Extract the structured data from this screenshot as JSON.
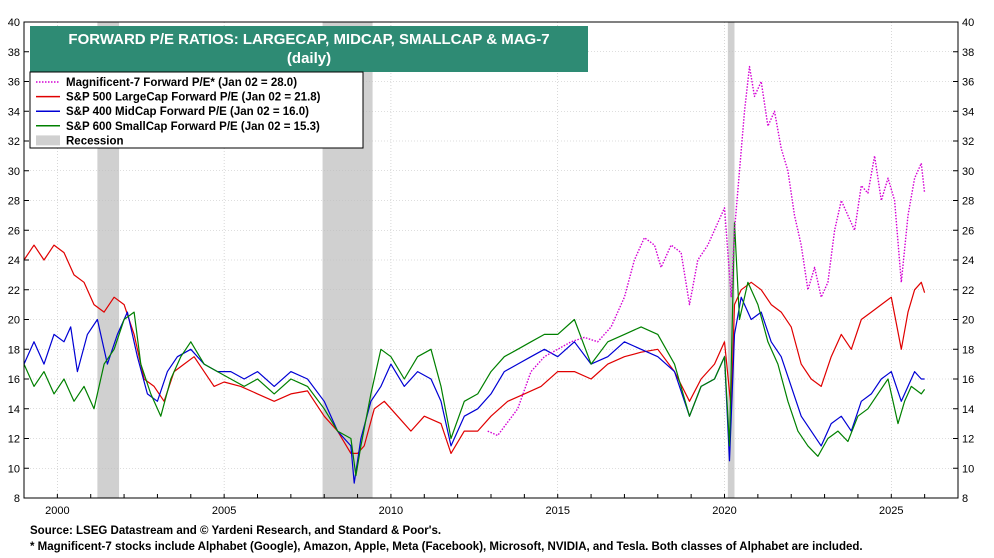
{
  "chart_data": {
    "type": "line",
    "title": "FORWARD P/E RATIOS: LARGECAP, MIDCAP, SMALLCAP & MAG-7",
    "subtitle": "(daily)",
    "xlim": [
      1999,
      2027
    ],
    "ylim": [
      8,
      40
    ],
    "x_ticks": [
      2000,
      2005,
      2010,
      2015,
      2020,
      2025
    ],
    "y_ticks": [
      8,
      10,
      12,
      14,
      16,
      18,
      20,
      22,
      24,
      26,
      28,
      30,
      32,
      34,
      36,
      38,
      40
    ],
    "grid": true,
    "legend_position": "top-left",
    "recessions": [
      [
        2001.2,
        2001.85
      ],
      [
        2007.95,
        2009.45
      ],
      [
        2020.1,
        2020.3
      ]
    ],
    "recession_label": "Recession",
    "recession_color": "#d0d0d0",
    "series": [
      {
        "name": "Magnificent-7 Forward P/E* (Jan 02 = 28.0)",
        "color": "#d400d4",
        "dashed": true,
        "x": [
          2012.9,
          2013.2,
          2013.4,
          2013.8,
          2014.2,
          2014.6,
          2015.0,
          2015.4,
          2015.8,
          2016.2,
          2016.6,
          2017.0,
          2017.3,
          2017.6,
          2017.9,
          2018.1,
          2018.4,
          2018.7,
          2018.95,
          2019.2,
          2019.5,
          2019.8,
          2020.0,
          2020.2,
          2020.3,
          2020.45,
          2020.6,
          2020.75,
          2020.9,
          2021.1,
          2021.3,
          2021.5,
          2021.7,
          2021.9,
          2022.1,
          2022.3,
          2022.5,
          2022.7,
          2022.9,
          2023.1,
          2023.3,
          2023.5,
          2023.7,
          2023.9,
          2024.1,
          2024.3,
          2024.5,
          2024.7,
          2024.9,
          2025.1,
          2025.3,
          2025.5,
          2025.7,
          2025.9,
          2026.0
        ],
        "y": [
          12.5,
          12.2,
          12.8,
          14.0,
          16.5,
          17.5,
          18.0,
          18.5,
          18.8,
          18.5,
          19.5,
          21.5,
          24.0,
          25.5,
          25.0,
          23.5,
          25.0,
          24.5,
          21.0,
          24.0,
          25.0,
          26.5,
          27.5,
          21.5,
          26.0,
          30.0,
          34.0,
          37.0,
          35.0,
          36.0,
          33.0,
          34.0,
          31.5,
          30.0,
          27.0,
          25.0,
          22.0,
          23.5,
          21.5,
          22.5,
          26.0,
          28.0,
          27.0,
          26.0,
          29.0,
          28.5,
          31.0,
          28.0,
          29.5,
          28.0,
          22.5,
          27.0,
          29.5,
          30.5,
          28.5
        ]
      },
      {
        "name": "S&P 500 LargeCap Forward P/E (Jan 02 = 21.8)",
        "color": "#e00000",
        "dashed": false,
        "x": [
          1999.0,
          1999.3,
          1999.6,
          1999.9,
          2000.2,
          2000.5,
          2000.8,
          2001.1,
          2001.4,
          2001.7,
          2002.0,
          2002.3,
          2002.6,
          2002.9,
          2003.2,
          2003.5,
          2003.8,
          2004.1,
          2004.4,
          2004.7,
          2005.0,
          2005.5,
          2006.0,
          2006.5,
          2007.0,
          2007.5,
          2008.0,
          2008.4,
          2008.8,
          2009.0,
          2009.2,
          2009.5,
          2009.8,
          2010.2,
          2010.6,
          2011.0,
          2011.5,
          2011.8,
          2012.2,
          2012.6,
          2013.0,
          2013.5,
          2014.0,
          2014.5,
          2015.0,
          2015.5,
          2016.0,
          2016.5,
          2017.0,
          2017.5,
          2018.0,
          2018.5,
          2018.95,
          2019.3,
          2019.7,
          2020.0,
          2020.2,
          2020.3,
          2020.5,
          2020.8,
          2021.1,
          2021.4,
          2021.7,
          2022.0,
          2022.3,
          2022.6,
          2022.9,
          2023.2,
          2023.5,
          2023.8,
          2024.1,
          2024.4,
          2024.7,
          2025.0,
          2025.3,
          2025.5,
          2025.7,
          2025.9,
          2026.0
        ],
        "y": [
          24.0,
          25.0,
          24.0,
          25.0,
          24.5,
          23.0,
          22.5,
          21.0,
          20.5,
          21.5,
          21.0,
          19.0,
          16.0,
          15.5,
          14.5,
          16.5,
          17.0,
          17.5,
          16.5,
          15.5,
          15.8,
          15.5,
          15.0,
          14.5,
          15.0,
          15.2,
          13.5,
          12.5,
          11.0,
          11.0,
          11.5,
          14.0,
          14.5,
          13.5,
          12.5,
          13.5,
          13.0,
          11.0,
          12.5,
          12.5,
          13.5,
          14.5,
          15.0,
          15.5,
          16.5,
          16.5,
          16.0,
          17.0,
          17.5,
          17.8,
          18.0,
          16.5,
          14.5,
          16.0,
          17.0,
          18.5,
          14.0,
          21.0,
          22.0,
          22.5,
          22.0,
          21.0,
          20.5,
          19.5,
          17.0,
          16.0,
          15.5,
          17.5,
          19.0,
          18.0,
          20.0,
          20.5,
          21.0,
          21.5,
          18.0,
          20.5,
          22.0,
          22.5,
          21.8
        ]
      },
      {
        "name": "S&P 400 MidCap Forward P/E (Jan 02 = 16.0)",
        "color": "#0000d4",
        "dashed": false,
        "x": [
          1999.0,
          1999.3,
          1999.6,
          1999.9,
          2000.2,
          2000.4,
          2000.6,
          2000.9,
          2001.2,
          2001.5,
          2001.8,
          2002.1,
          2002.4,
          2002.7,
          2003.0,
          2003.3,
          2003.6,
          2004.0,
          2004.4,
          2004.8,
          2005.2,
          2005.6,
          2006.0,
          2006.5,
          2007.0,
          2007.5,
          2008.0,
          2008.4,
          2008.8,
          2008.9,
          2009.1,
          2009.4,
          2009.7,
          2010.0,
          2010.4,
          2010.8,
          2011.2,
          2011.5,
          2011.8,
          2012.2,
          2012.6,
          2013.0,
          2013.4,
          2013.8,
          2014.2,
          2014.6,
          2015.0,
          2015.5,
          2016.0,
          2016.5,
          2017.0,
          2017.5,
          2018.0,
          2018.5,
          2018.95,
          2019.3,
          2019.7,
          2020.0,
          2020.15,
          2020.3,
          2020.5,
          2020.8,
          2021.1,
          2021.4,
          2021.7,
          2022.0,
          2022.3,
          2022.6,
          2022.9,
          2023.2,
          2023.5,
          2023.8,
          2024.1,
          2024.4,
          2024.7,
          2025.0,
          2025.3,
          2025.5,
          2025.7,
          2025.9,
          2026.0
        ],
        "y": [
          17.0,
          18.5,
          17.0,
          19.0,
          18.5,
          19.5,
          16.5,
          19.0,
          20.0,
          17.0,
          19.0,
          20.5,
          17.5,
          15.0,
          14.5,
          16.5,
          17.5,
          18.0,
          17.0,
          16.5,
          16.5,
          16.0,
          16.5,
          15.5,
          16.5,
          16.0,
          14.5,
          12.5,
          11.5,
          9.0,
          12.0,
          14.5,
          15.5,
          17.0,
          15.5,
          16.5,
          16.0,
          14.5,
          11.5,
          13.5,
          14.0,
          15.0,
          16.5,
          17.0,
          17.5,
          18.0,
          17.5,
          18.5,
          17.0,
          17.5,
          18.5,
          18.0,
          17.5,
          16.5,
          13.5,
          15.5,
          16.0,
          17.5,
          10.5,
          19.0,
          21.5,
          20.0,
          20.5,
          18.5,
          17.5,
          15.5,
          13.5,
          12.5,
          11.5,
          13.0,
          13.5,
          12.5,
          14.5,
          15.0,
          16.0,
          16.5,
          14.5,
          15.5,
          16.5,
          16.0,
          16.0
        ]
      },
      {
        "name": "S&P 600 SmallCap Forward P/E (Jan 02 = 15.3)",
        "color": "#008000",
        "dashed": false,
        "x": [
          1999.0,
          1999.3,
          1999.6,
          1999.9,
          2000.2,
          2000.5,
          2000.8,
          2001.1,
          2001.4,
          2001.7,
          2002.0,
          2002.3,
          2002.5,
          2002.8,
          2003.1,
          2003.4,
          2003.7,
          2004.0,
          2004.4,
          2004.8,
          2005.2,
          2005.6,
          2006.0,
          2006.5,
          2007.0,
          2007.5,
          2008.0,
          2008.4,
          2008.8,
          2008.95,
          2009.1,
          2009.4,
          2009.7,
          2010.0,
          2010.4,
          2010.8,
          2011.2,
          2011.5,
          2011.8,
          2012.2,
          2012.6,
          2013.0,
          2013.4,
          2013.8,
          2014.2,
          2014.6,
          2015.0,
          2015.5,
          2016.0,
          2016.5,
          2017.0,
          2017.5,
          2018.0,
          2018.5,
          2018.95,
          2019.3,
          2019.7,
          2020.0,
          2020.15,
          2020.3,
          2020.45,
          2020.7,
          2021.0,
          2021.3,
          2021.6,
          2021.9,
          2022.2,
          2022.5,
          2022.8,
          2023.1,
          2023.4,
          2023.7,
          2024.0,
          2024.3,
          2024.6,
          2024.9,
          2025.2,
          2025.4,
          2025.6,
          2025.9,
          2026.0
        ],
        "y": [
          17.0,
          15.5,
          16.5,
          15.0,
          16.0,
          14.5,
          15.5,
          14.0,
          17.0,
          18.0,
          20.0,
          20.5,
          17.0,
          15.0,
          13.5,
          16.0,
          17.5,
          18.5,
          17.0,
          16.5,
          16.0,
          15.5,
          16.0,
          15.0,
          16.0,
          15.5,
          14.0,
          12.5,
          12.0,
          9.5,
          11.5,
          15.0,
          18.0,
          17.5,
          16.0,
          17.5,
          18.0,
          15.5,
          12.0,
          14.5,
          15.0,
          16.5,
          17.5,
          18.0,
          18.5,
          19.0,
          19.0,
          20.0,
          17.0,
          18.5,
          19.0,
          19.5,
          19.0,
          17.0,
          13.5,
          15.5,
          16.0,
          17.5,
          11.5,
          26.5,
          20.0,
          22.5,
          21.0,
          18.5,
          17.0,
          14.5,
          12.5,
          11.5,
          10.8,
          12.0,
          12.5,
          11.8,
          13.5,
          14.0,
          15.0,
          16.0,
          13.0,
          14.5,
          15.5,
          15.0,
          15.3
        ]
      }
    ]
  },
  "source": "Source: LSEG Datastream and © Yardeni Research, and Standard & Poor's.",
  "footnote": "* Magnificent-7 stocks include Alphabet (Google), Amazon, Apple, Meta (Facebook), Microsoft, NVIDIA, and Tesla. Both classes of Alphabet are included.",
  "colors": {
    "title_bg": "#2e8b74",
    "grid": "#bdbdbd"
  }
}
